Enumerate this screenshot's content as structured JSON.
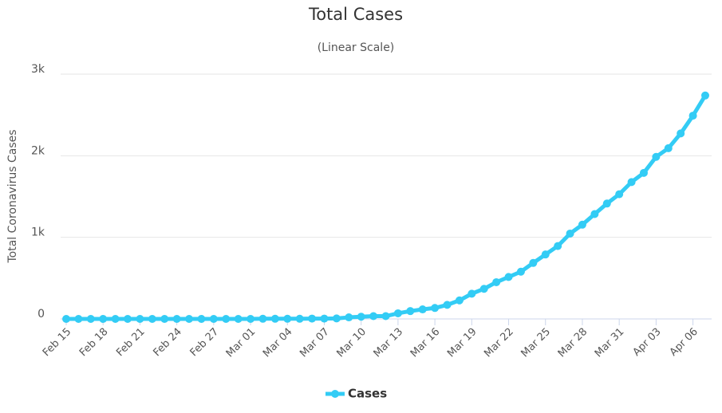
{
  "chart_data": {
    "type": "line",
    "title": "Total Cases",
    "subtitle": "(Linear Scale)",
    "y_label": "Total Coronavirus Cases",
    "categories": [
      "Feb 15",
      null,
      null,
      "Feb 18",
      null,
      null,
      "Feb 21",
      null,
      null,
      "Feb 24",
      null,
      null,
      "Feb 27",
      null,
      null,
      "Mar 01",
      null,
      null,
      "Mar 04",
      null,
      null,
      "Mar 07",
      null,
      null,
      "Mar 10",
      null,
      null,
      "Mar 13",
      null,
      null,
      "Mar 16",
      null,
      null,
      "Mar 19",
      null,
      null,
      "Mar 22",
      null,
      null,
      "Mar 25",
      null,
      null,
      "Mar 28",
      null,
      null,
      "Mar 31",
      null,
      null,
      "Apr 03",
      null,
      null,
      "Apr 06",
      null
    ],
    "series": [
      {
        "name": "Cases",
        "color": "#33ccf5",
        "values": [
          0,
          0,
          0,
          0,
          0,
          0,
          0,
          0,
          0,
          0,
          0,
          0,
          0,
          0,
          0,
          0,
          2,
          2,
          2,
          2,
          4,
          4,
          6,
          19,
          27,
          34,
          34,
          69,
          96,
          117,
          134,
          172,
          227,
          309,
          369,
          450,
          514,
          579,
          686,
          790,
          893,
          1046,
          1155,
          1285,
          1414,
          1528,
          1677,
          1790,
          1986,
          2092,
          2273,
          2491,
          2738
        ]
      }
    ],
    "ylim": [
      0,
      3000
    ],
    "yticks": [
      0,
      {
        "value": 1000,
        "label": "1k"
      },
      {
        "value": 2000,
        "label": "2k"
      },
      {
        "value": 3000,
        "label": "3k"
      }
    ],
    "grid": true,
    "legend": "bottom"
  }
}
